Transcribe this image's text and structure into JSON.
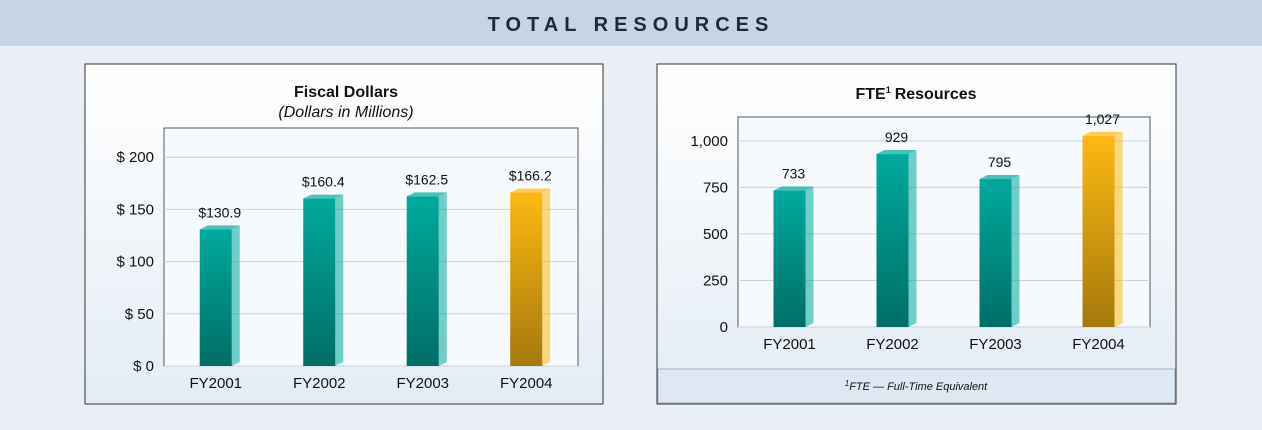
{
  "header": {
    "title": "TOTAL RESOURCES"
  },
  "chart_data": [
    {
      "type": "bar",
      "title": "Fiscal Dollars",
      "subtitle": "(Dollars in Millions)",
      "categories": [
        "FY2001",
        "FY2002",
        "FY2003",
        "FY2004"
      ],
      "values": [
        130.9,
        160.4,
        162.5,
        166.2
      ],
      "value_labels": [
        "$130.9",
        "$160.4",
        "$162.5",
        "$166.2"
      ],
      "colors": [
        "#00a99d",
        "#00a99d",
        "#00a99d",
        "#fdb913"
      ],
      "ylim": [
        0,
        228
      ],
      "yticks": [
        {
          "value": 0,
          "label": "$ 0"
        },
        {
          "value": 50,
          "label": "$ 50"
        },
        {
          "value": 100,
          "label": "$ 100"
        },
        {
          "value": 150,
          "label": "$ 150"
        },
        {
          "value": 200,
          "label": "$ 200"
        }
      ],
      "grid": true
    },
    {
      "type": "bar",
      "title": "FTE",
      "title_footnote_mark": "1",
      "title_rest": "Resources",
      "categories": [
        "FY2001",
        "FY2002",
        "FY2003",
        "FY2004"
      ],
      "values": [
        733,
        929,
        795,
        1027
      ],
      "value_labels": [
        "733",
        "929",
        "795",
        "1,027"
      ],
      "colors": [
        "#00a99d",
        "#00a99d",
        "#00a99d",
        "#fdb913"
      ],
      "ylim": [
        0,
        1128
      ],
      "yticks": [
        0,
        250,
        500,
        750,
        {
          "value": 1000,
          "label": "1,000"
        }
      ],
      "grid": true,
      "footnote": {
        "mark": "1",
        "text": "FTE — Full-Time Equivalent"
      }
    }
  ]
}
